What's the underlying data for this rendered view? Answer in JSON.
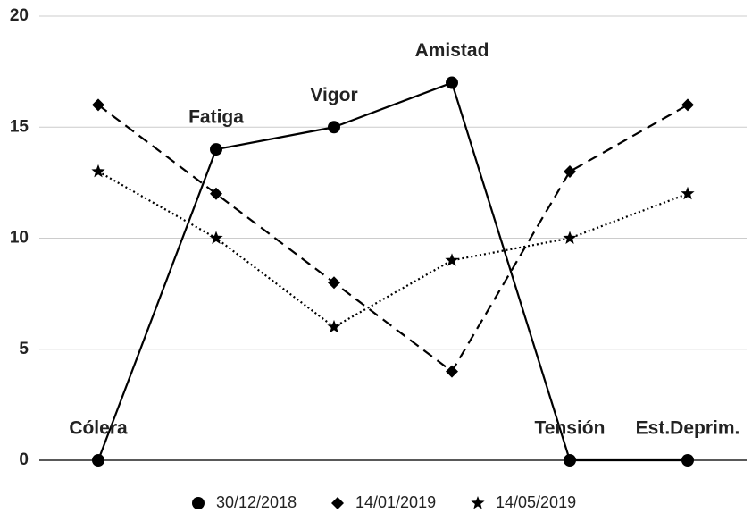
{
  "chart_data": {
    "type": "line",
    "categories": [
      "Cólera",
      "Fatiga",
      "Vigor",
      "Amistad",
      "Tensión",
      "Est.Deprim."
    ],
    "series": [
      {
        "name": "30/12/2018",
        "color": "#000000",
        "line_style": "solid",
        "marker": "circle",
        "values": [
          0,
          14,
          15,
          17,
          0,
          0
        ]
      },
      {
        "name": "14/01/2019",
        "color": "#000000",
        "line_style": "dashed",
        "marker": "diamond",
        "values": [
          16,
          12,
          8,
          4,
          13,
          16
        ]
      },
      {
        "name": "14/05/2019",
        "color": "#000000",
        "line_style": "dotted",
        "marker": "star",
        "values": [
          13,
          10,
          6,
          9,
          10,
          12
        ]
      }
    ],
    "ylim": [
      0,
      20
    ],
    "yticks": [
      0,
      5,
      10,
      15,
      20
    ],
    "grid": true,
    "legend": "bottom"
  }
}
